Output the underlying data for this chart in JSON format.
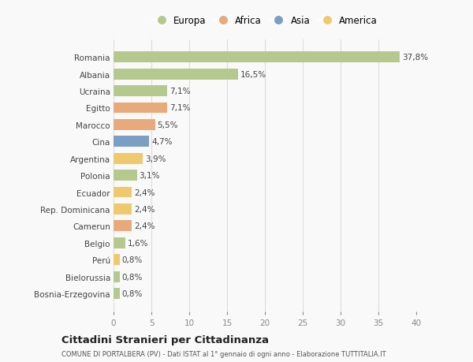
{
  "countries": [
    "Romania",
    "Albania",
    "Ucraina",
    "Egitto",
    "Marocco",
    "Cina",
    "Argentina",
    "Polonia",
    "Ecuador",
    "Rep. Dominicana",
    "Camerun",
    "Belgio",
    "Perú",
    "Bielorussia",
    "Bosnia-Erzegovina"
  ],
  "values": [
    37.8,
    16.5,
    7.1,
    7.1,
    5.5,
    4.7,
    3.9,
    3.1,
    2.4,
    2.4,
    2.4,
    1.6,
    0.8,
    0.8,
    0.8
  ],
  "labels": [
    "37,8%",
    "16,5%",
    "7,1%",
    "7,1%",
    "5,5%",
    "4,7%",
    "3,9%",
    "3,1%",
    "2,4%",
    "2,4%",
    "2,4%",
    "1,6%",
    "0,8%",
    "0,8%",
    "0,8%"
  ],
  "colors": [
    "#b5c98e",
    "#b5c98e",
    "#b5c98e",
    "#e8aa7a",
    "#e8aa7a",
    "#7b9fc4",
    "#f0c96e",
    "#b5c98e",
    "#f0c96e",
    "#f0c96e",
    "#e8aa7a",
    "#b5c98e",
    "#f0c96e",
    "#b5c98e",
    "#b5c98e"
  ],
  "legend": [
    {
      "label": "Europa",
      "color": "#b5c98e"
    },
    {
      "label": "Africa",
      "color": "#e8aa7a"
    },
    {
      "label": "Asia",
      "color": "#7b9fc4"
    },
    {
      "label": "America",
      "color": "#f0c96e"
    }
  ],
  "title": "Cittadini Stranieri per Cittadinanza",
  "subtitle": "COMUNE DI PORTALBERA (PV) - Dati ISTAT al 1° gennaio di ogni anno - Elaborazione TUTTITALIA.IT",
  "xlim": [
    0,
    40
  ],
  "xticks": [
    0,
    5,
    10,
    15,
    20,
    25,
    30,
    35,
    40
  ],
  "bg_color": "#f9f9f9",
  "grid_color": "#dddddd"
}
